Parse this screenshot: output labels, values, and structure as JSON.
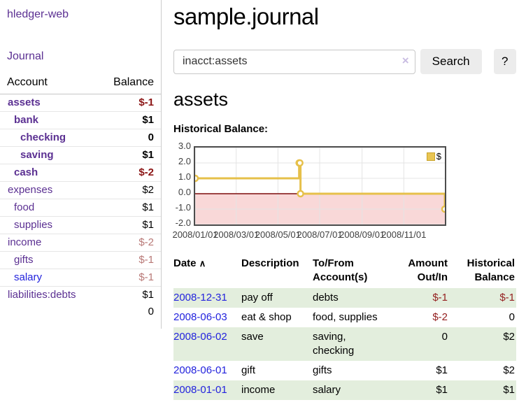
{
  "app": {
    "brand": "hledger-web"
  },
  "colors": {
    "link_purple": "#5b3092",
    "link_blue": "#2323dd",
    "negative_bold": "#8b1414",
    "negative_dim": "#b87876",
    "negative_table": "#942020",
    "row_green": "#e3eedd",
    "button_gray": "#ececec"
  },
  "sidebar": {
    "nav_journal": "Journal",
    "accounts": {
      "col_account": "Account",
      "col_balance": "Balance",
      "rows": [
        {
          "name": "assets",
          "balance": "$-1",
          "depth": 1,
          "bold": true,
          "negative": true
        },
        {
          "name": "bank",
          "balance": "$1",
          "depth": 2,
          "bold": true,
          "negative": false
        },
        {
          "name": "checking",
          "balance": "0",
          "depth": 3,
          "bold": true,
          "negative": false
        },
        {
          "name": "saving",
          "balance": "$1",
          "depth": 3,
          "bold": true,
          "negative": false
        },
        {
          "name": "cash",
          "balance": "$-2",
          "depth": 2,
          "bold": true,
          "negative": true
        },
        {
          "name": "expenses",
          "balance": "$2",
          "depth": 1,
          "bold": false,
          "negative": false
        },
        {
          "name": "food",
          "balance": "$1",
          "depth": 2,
          "bold": false,
          "negative": false
        },
        {
          "name": "supplies",
          "balance": "$1",
          "depth": 2,
          "bold": false,
          "negative": false
        },
        {
          "name": "income",
          "balance": "$-2",
          "depth": 1,
          "bold": false,
          "negative": true
        },
        {
          "name": "gifts",
          "balance": "$-1",
          "depth": 2,
          "bold": false,
          "negative": true
        },
        {
          "name": "salary",
          "balance": "$-1",
          "depth": 2,
          "bold": false,
          "negative": true,
          "blue": true
        },
        {
          "name": "liabilities:debts",
          "balance": "$1",
          "depth": 1,
          "bold": false,
          "negative": false
        }
      ],
      "total": "0"
    }
  },
  "header": {
    "title": "sample.journal"
  },
  "search": {
    "value": "inacct:assets",
    "clear_icon": "×",
    "button_label": "Search",
    "help_label": "?"
  },
  "page": {
    "heading": "assets",
    "chart_label": "Historical Balance:"
  },
  "chart_data": {
    "type": "line",
    "step": true,
    "title": "Historical Balance:",
    "series": [
      {
        "name": "$",
        "color": "#e6c04a",
        "points": [
          [
            "2008-01-01",
            1
          ],
          [
            "2008-06-01",
            2
          ],
          [
            "2008-06-02",
            2
          ],
          [
            "2008-06-03",
            0
          ],
          [
            "2008-12-31",
            -1
          ]
        ]
      }
    ],
    "xlim": [
      "2008-01-01",
      "2008-12-31"
    ],
    "ylim": [
      -2,
      3
    ],
    "x_ticks": [
      "2008/01/01",
      "2008/03/01",
      "2008/05/01",
      "2008/07/01",
      "2008/09/01",
      "2008/11/01"
    ],
    "y_ticks": [
      "3.0",
      "2.0",
      "1.0",
      "0.0",
      "-1.0",
      "-2.0"
    ],
    "legend": "$",
    "legend_position": "top-right",
    "grid": true,
    "colors": {
      "negative_region": "#f9d8d8",
      "zero_line": "#7d0d0d",
      "grid": "#e4e4e4"
    }
  },
  "register": {
    "headers": {
      "date": "Date",
      "description": "Description",
      "accounts": "To/From Account(s)",
      "amount": "Amount Out/In",
      "balance": "Historical Balance"
    },
    "sort_icon": "∧",
    "rows": [
      {
        "date": "2008-12-31",
        "description": "pay off",
        "accounts": "debts",
        "amount": "$-1",
        "balance": "$-1"
      },
      {
        "date": "2008-06-03",
        "description": "eat & shop",
        "accounts": "food, supplies",
        "amount": "$-2",
        "balance": "0"
      },
      {
        "date": "2008-06-02",
        "description": "save",
        "accounts": "saving, checking",
        "amount": "0",
        "balance": "$2"
      },
      {
        "date": "2008-06-01",
        "description": "gift",
        "accounts": "gifts",
        "amount": "$1",
        "balance": "$2"
      },
      {
        "date": "2008-01-01",
        "description": "income",
        "accounts": "salary",
        "amount": "$1",
        "balance": "$1"
      }
    ]
  }
}
